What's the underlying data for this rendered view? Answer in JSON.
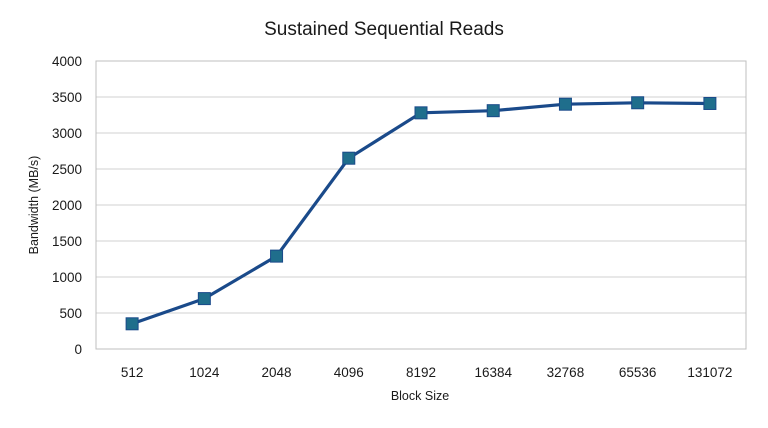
{
  "chart_data": {
    "type": "line",
    "title": "Sustained Sequential Reads",
    "xlabel": "Block Size",
    "ylabel": "Bandwidth (MB/s)",
    "categories": [
      "512",
      "1024",
      "2048",
      "4096",
      "8192",
      "16384",
      "32768",
      "65536",
      "131072"
    ],
    "series": [
      {
        "values": [
          350,
          700,
          1290,
          2650,
          3280,
          3310,
          3400,
          3420,
          3410
        ]
      }
    ],
    "ylim": [
      0,
      4000
    ],
    "yticks": [
      "0",
      "500",
      "1000",
      "1500",
      "2000",
      "2500",
      "3000",
      "3500",
      "4000"
    ],
    "grid": true,
    "legend": "none",
    "colors": {
      "line": "#1a4a8a",
      "marker": "#1f6e8c",
      "grid": "#d0d0d0",
      "frame": "#bfbfbf"
    }
  }
}
